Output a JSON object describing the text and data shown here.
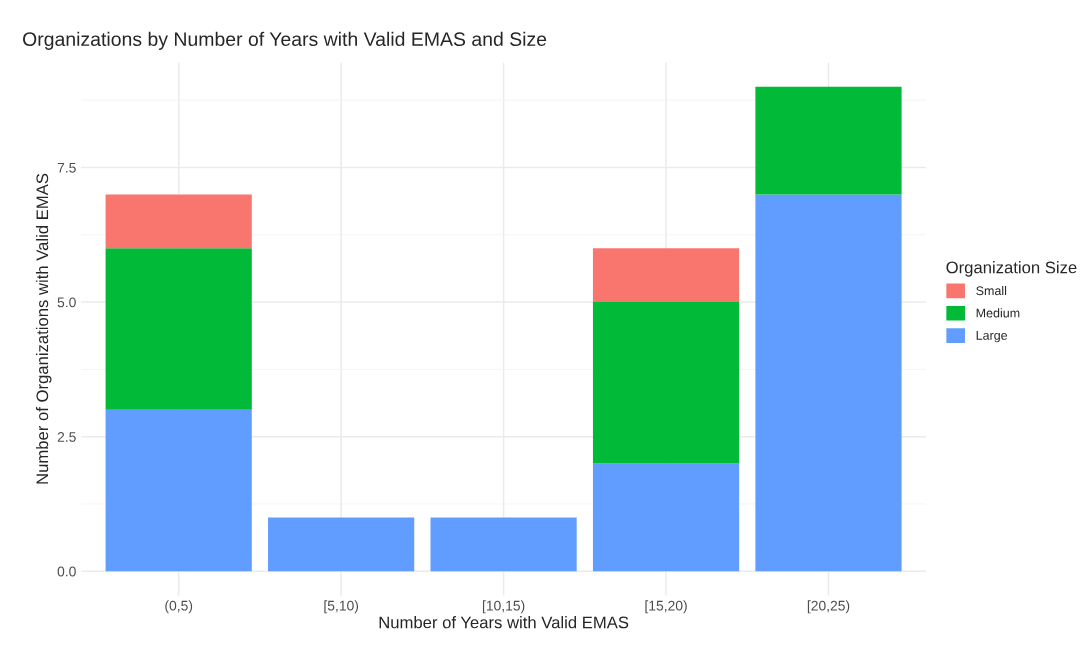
{
  "chart_data": {
    "type": "bar",
    "stacked": true,
    "title": "Organizations by Number of Years with Valid EMAS and Size",
    "xlabel": "Number of Years with Valid EMAS",
    "ylabel": "Number of Organizations with Valid EMAS",
    "legend_title": "Organization Size",
    "categories": [
      "(0,5)",
      "[5,10)",
      "[10,15)",
      "[15,20)",
      "[20,25)"
    ],
    "series": [
      {
        "name": "Large",
        "color": "#619cff",
        "values": [
          3,
          1,
          1,
          2,
          7
        ]
      },
      {
        "name": "Medium",
        "color": "#00ba38",
        "values": [
          3,
          0,
          0,
          3,
          2
        ]
      },
      {
        "name": "Small",
        "color": "#f8766d",
        "values": [
          1,
          0,
          0,
          1,
          0
        ]
      }
    ],
    "ylim": [
      -0.45,
      9.45
    ],
    "yticks": [
      {
        "value": 0,
        "label": "0.0"
      },
      {
        "value": 2.5,
        "label": "2.5"
      },
      {
        "value": 5,
        "label": "5.0"
      },
      {
        "value": 7.5,
        "label": "7.5"
      }
    ],
    "grid": true,
    "legend": "right"
  }
}
